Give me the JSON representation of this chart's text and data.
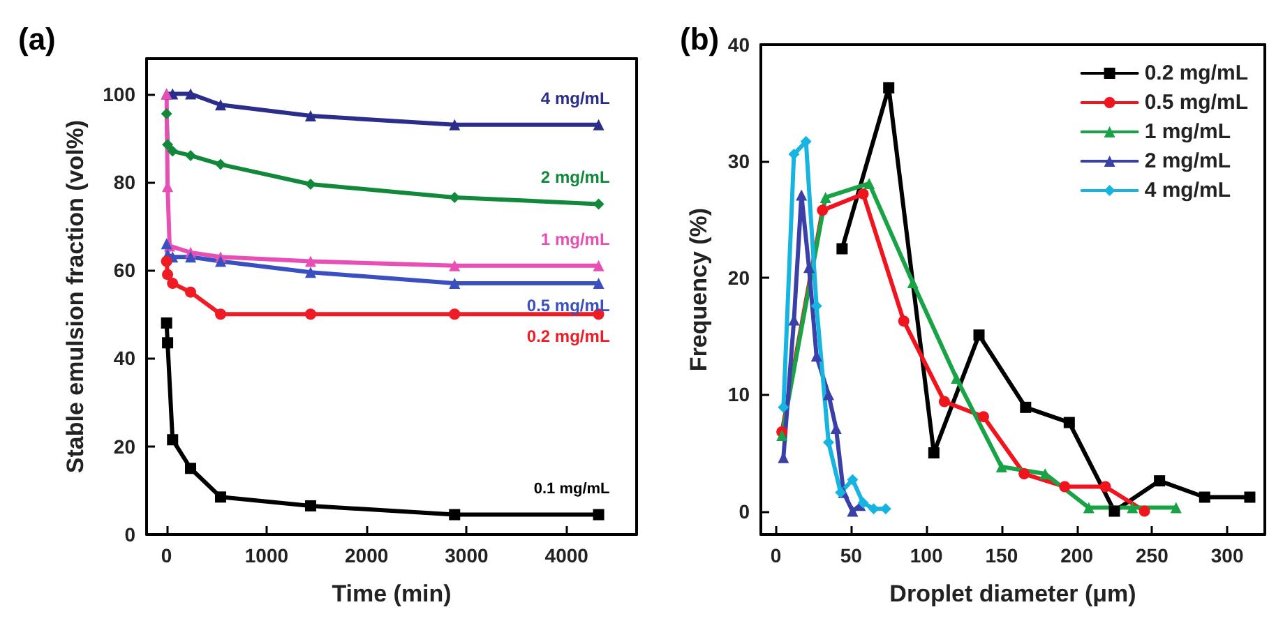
{
  "chart_data": [
    {
      "type": "line",
      "title": "(a)",
      "xlabel": "Time (min)",
      "ylabel": "Stable emulsion fraction (vol%)",
      "xlim": [
        -200,
        4700
      ],
      "xticks": [
        0,
        1000,
        2000,
        3000,
        4000
      ],
      "ylim": [
        0,
        108
      ],
      "yticks": [
        0,
        20,
        40,
        60,
        80,
        100
      ],
      "grid": false,
      "legend": false,
      "series": [
        {
          "name": "4 mg/mL",
          "color": "#2b2d8a",
          "marker": "triangle",
          "x": [
            0,
            60,
            240,
            540,
            1440,
            2880,
            4320
          ],
          "values": [
            100,
            100,
            100,
            97.5,
            95,
            93,
            93
          ]
        },
        {
          "name": "2 mg/mL",
          "color": "#12893a",
          "marker": "diamond",
          "x": [
            0,
            10,
            60,
            240,
            540,
            1440,
            2880,
            4320
          ],
          "values": [
            95.5,
            88.5,
            87,
            86,
            84,
            79.5,
            76.5,
            75
          ]
        },
        {
          "name": "1 mg/mL",
          "color": "#e84fb5",
          "marker": "triangle",
          "x": [
            0,
            10,
            30,
            240,
            540,
            1440,
            2880,
            4320
          ],
          "values": [
            100,
            79,
            65.5,
            64,
            63,
            62,
            61,
            61
          ]
        },
        {
          "name": "0.5 mg/mL",
          "color": "#3a4fc0",
          "marker": "triangle",
          "x": [
            0,
            10,
            60,
            240,
            540,
            1440,
            2880,
            4320
          ],
          "values": [
            66,
            63.5,
            63,
            63,
            62,
            59.5,
            57,
            57
          ]
        },
        {
          "name": "0.2 mg/mL",
          "color": "#ee1c25",
          "marker": "circle",
          "x": [
            0,
            10,
            60,
            240,
            540,
            1440,
            2880,
            4320
          ],
          "values": [
            62,
            59,
            57,
            55,
            50,
            50,
            50,
            50
          ]
        },
        {
          "name": "0.1 mg/mL",
          "color": "#000000",
          "marker": "square",
          "x": [
            0,
            10,
            60,
            240,
            540,
            1440,
            2880,
            4320
          ],
          "values": [
            48,
            43.5,
            21.5,
            15,
            8.5,
            6.5,
            4.5,
            4.5
          ]
        }
      ]
    },
    {
      "type": "line",
      "title": "(b)",
      "xlabel": "Droplet diameter (μm)",
      "ylabel": "Frequency (%)",
      "xlim": [
        -10,
        325
      ],
      "xticks": [
        0,
        50,
        100,
        150,
        200,
        250,
        300
      ],
      "ylim": [
        -2,
        40
      ],
      "yticks": [
        0,
        10,
        20,
        30,
        40
      ],
      "grid": false,
      "legend": "top right",
      "series": [
        {
          "name": "0.2 mg/mL",
          "color": "#000000",
          "marker": "square",
          "x": [
            44,
            75,
            105,
            135,
            166,
            195,
            225,
            255,
            285,
            315
          ],
          "values": [
            22.5,
            36.3,
            5,
            15.1,
            8.9,
            7.6,
            0,
            2.6,
            1.2,
            1.2
          ]
        },
        {
          "name": "0.5 mg/mL",
          "color": "#f0141e",
          "marker": "circle",
          "x": [
            4,
            31,
            58,
            85,
            112,
            138,
            165,
            192,
            219,
            245
          ],
          "values": [
            6.8,
            25.8,
            27.2,
            16.3,
            9.4,
            8.1,
            3.2,
            2.1,
            2.1,
            0
          ]
        },
        {
          "name": "1 mg/mL",
          "color": "#19a346",
          "marker": "triangle",
          "x": [
            4,
            33,
            62,
            91,
            120,
            150,
            179,
            208,
            237,
            266
          ],
          "values": [
            6.5,
            26.9,
            28.1,
            19.6,
            11.4,
            3.8,
            3.2,
            0.3,
            0.3,
            0.3
          ]
        },
        {
          "name": "2 mg/mL",
          "color": "#3b3fa8",
          "marker": "triangle",
          "x": [
            5,
            12,
            17,
            22,
            27,
            35,
            40,
            45,
            51,
            56
          ],
          "values": [
            4.6,
            16.4,
            27.1,
            20.9,
            13.3,
            10,
            7.1,
            1.6,
            0,
            0.5
          ]
        },
        {
          "name": "4 mg/mL",
          "color": "#16b4e0",
          "marker": "diamond",
          "x": [
            5,
            12,
            20,
            27,
            35,
            43,
            51,
            58,
            65,
            73
          ],
          "values": [
            8.9,
            30.6,
            31.7,
            17.6,
            5.9,
            1.6,
            2.7,
            0.7,
            0.2,
            0.2
          ]
        }
      ]
    }
  ]
}
